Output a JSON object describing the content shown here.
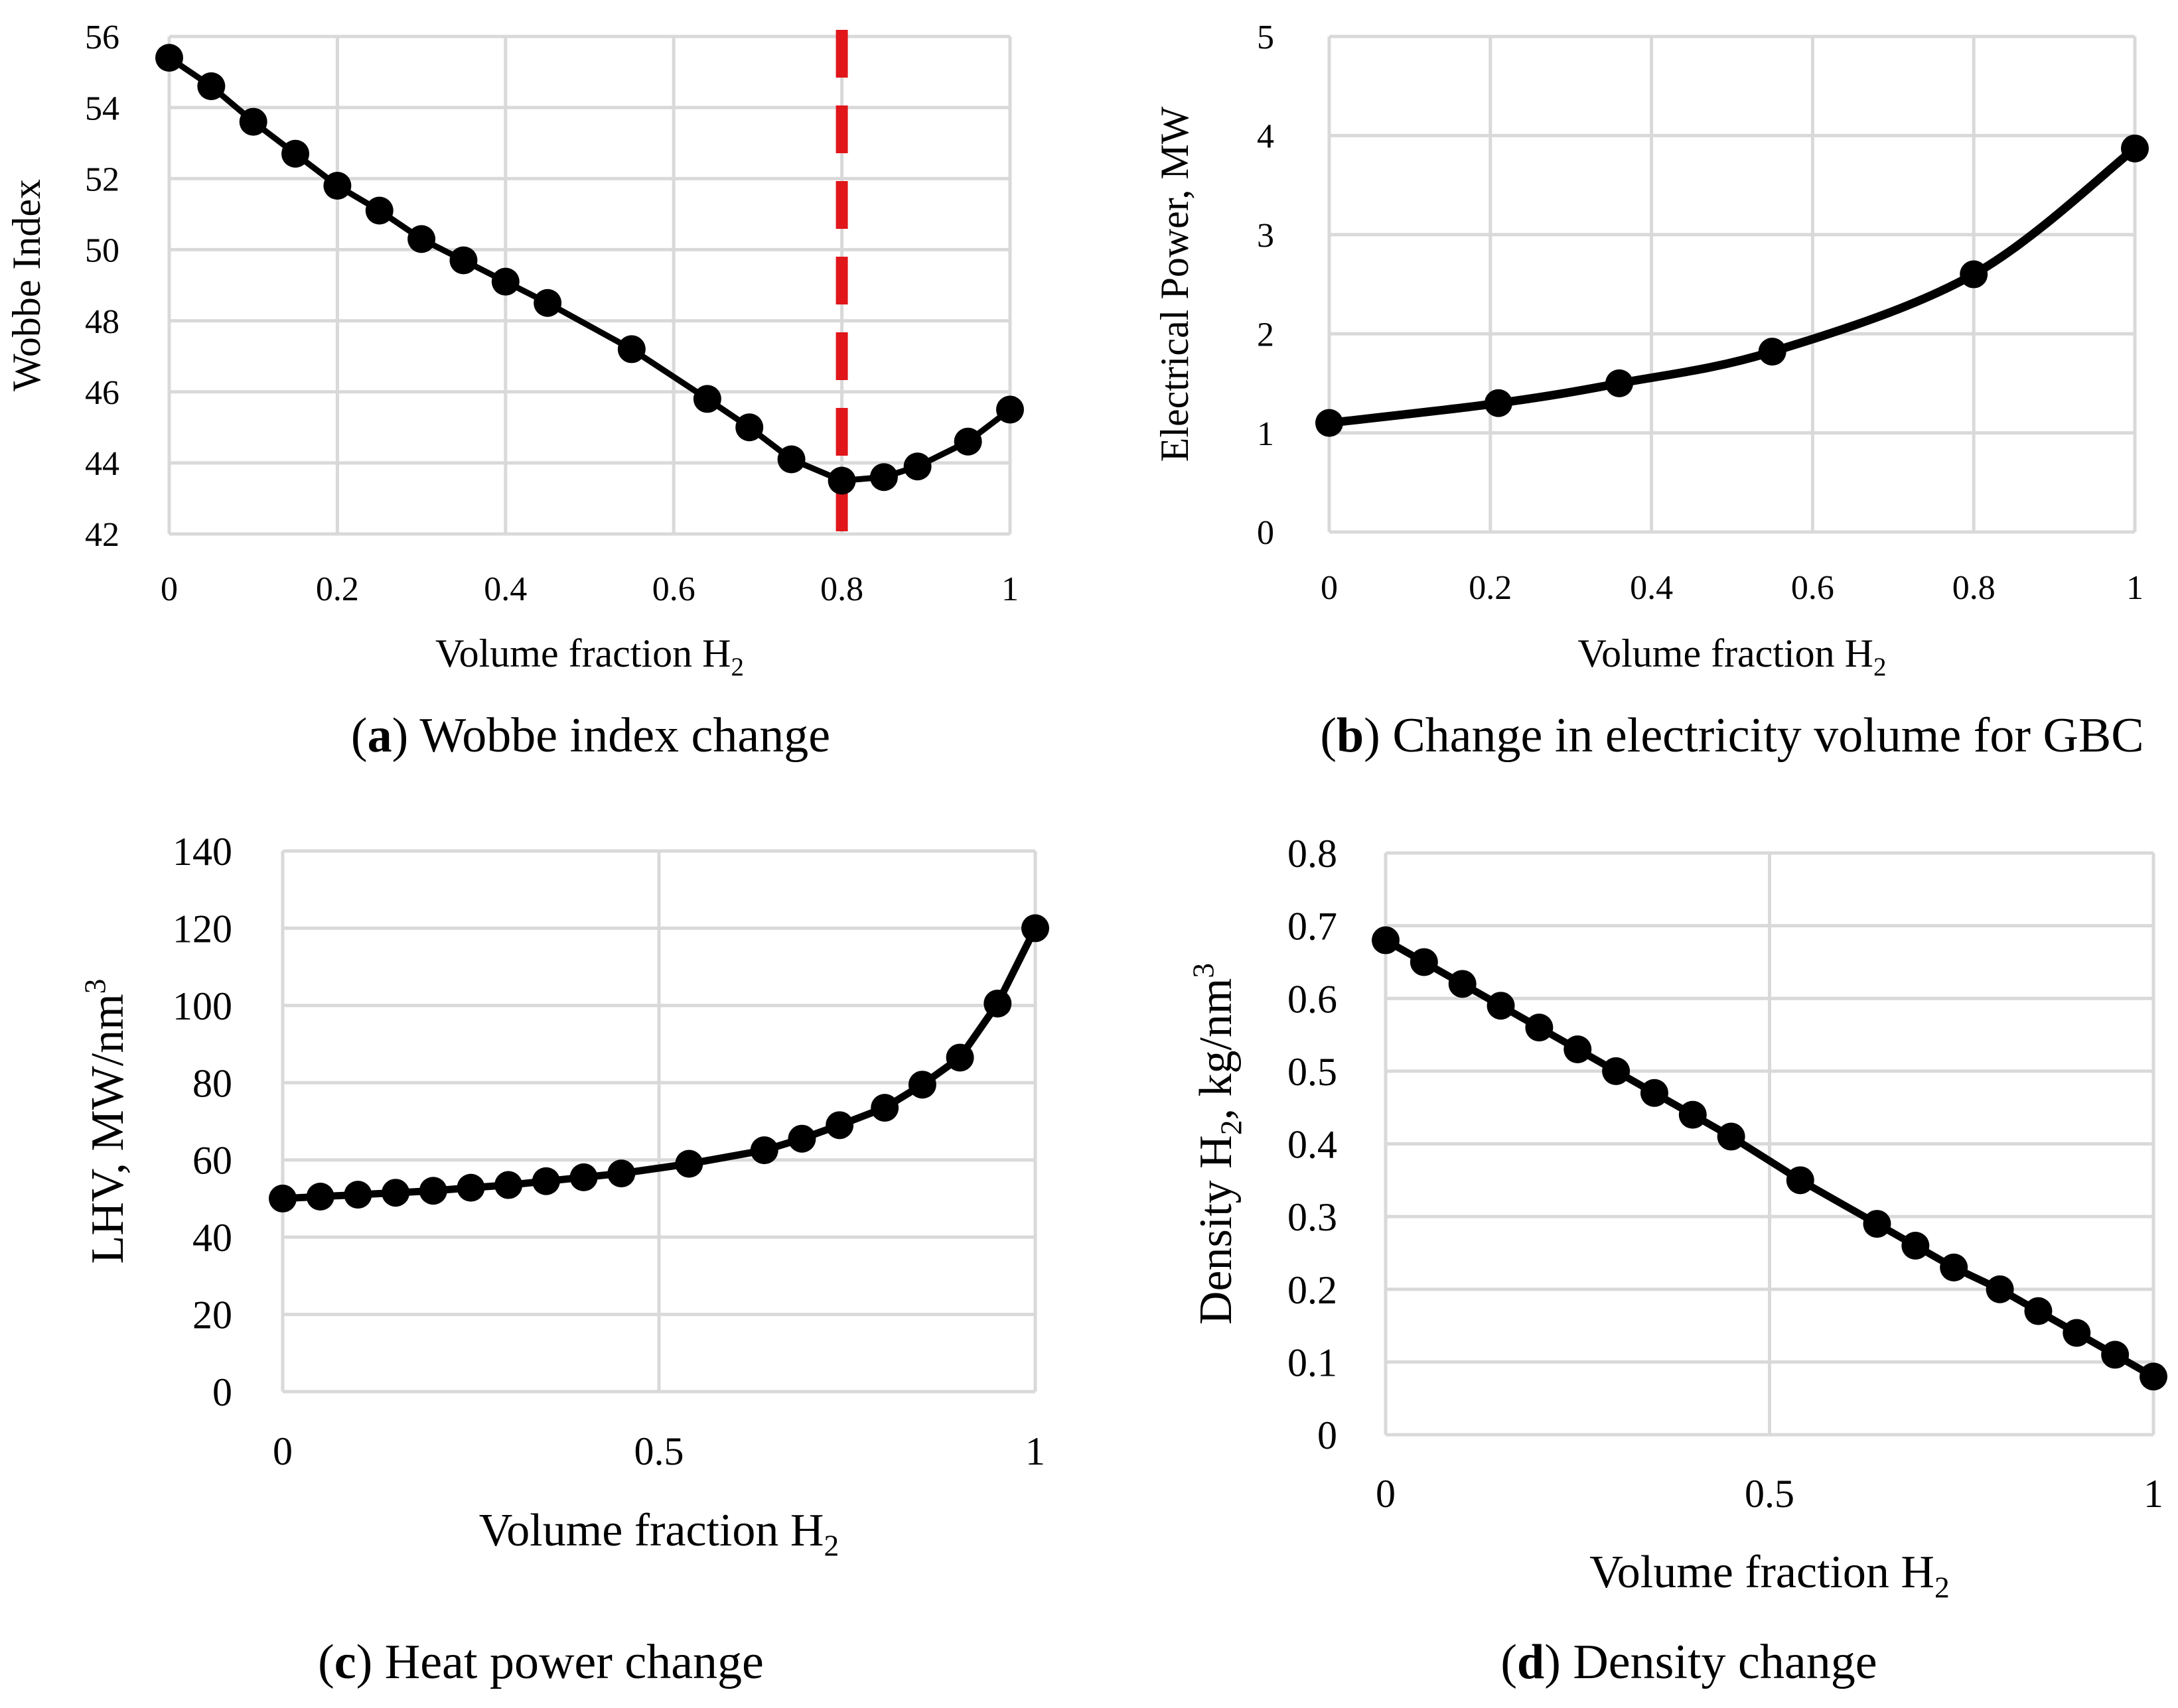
{
  "chart_data": [
    {
      "type": "line",
      "panel": "a",
      "caption_letter": "a",
      "caption_text": " Wobbe index change",
      "xlabel": "Volume fraction H",
      "xlabel_sub": "2",
      "ylabel": "Wobbe Index",
      "xlim": [
        0,
        1
      ],
      "ylim": [
        42,
        56
      ],
      "xticks": [
        0,
        0.2,
        0.4,
        0.6,
        0.8,
        1
      ],
      "xtick_labels": [
        "0",
        "0.2",
        "0.4",
        "0.6",
        "0.8",
        "1"
      ],
      "yticks": [
        42,
        44,
        46,
        48,
        50,
        52,
        54,
        56
      ],
      "ytick_labels": [
        "42",
        "44",
        "46",
        "48",
        "50",
        "52",
        "54",
        "56"
      ],
      "grid": true,
      "smooth": false,
      "reference_line": {
        "x": 0.8,
        "color": "#e0161b",
        "style": "dashed"
      },
      "series": [
        {
          "name": "Wobbe index",
          "x": [
            0,
            0.05,
            0.1,
            0.15,
            0.2,
            0.25,
            0.3,
            0.35,
            0.4,
            0.45,
            0.55,
            0.64,
            0.69,
            0.74,
            0.8,
            0.85,
            0.89,
            0.95,
            1.0
          ],
          "y": [
            55.4,
            54.6,
            53.6,
            52.7,
            51.8,
            51.1,
            50.3,
            49.7,
            49.1,
            48.5,
            47.2,
            45.8,
            45.0,
            44.1,
            43.5,
            43.6,
            43.9,
            44.6,
            45.5
          ]
        }
      ]
    },
    {
      "type": "line",
      "panel": "b",
      "caption_letter": "b",
      "caption_text": " Change in electricity volume for GBC",
      "xlabel": "Volume fraction H",
      "xlabel_sub": "2",
      "ylabel": "Electrical Power, MW",
      "xlim": [
        0,
        1
      ],
      "ylim": [
        0,
        5
      ],
      "xticks": [
        0,
        0.2,
        0.4,
        0.6,
        0.8,
        1
      ],
      "xtick_labels": [
        "0",
        "0.2",
        "0.4",
        "0.6",
        "0.8",
        "1"
      ],
      "yticks": [
        0,
        1,
        2,
        3,
        4,
        5
      ],
      "ytick_labels": [
        "0",
        "1",
        "2",
        "3",
        "4",
        "5"
      ],
      "grid": true,
      "smooth": true,
      "series": [
        {
          "name": "Electrical power",
          "x": [
            0,
            0.21,
            0.36,
            0.55,
            0.8,
            1.0
          ],
          "y": [
            1.1,
            1.3,
            1.5,
            1.82,
            2.6,
            3.87
          ]
        }
      ]
    },
    {
      "type": "line",
      "panel": "c",
      "caption_letter": "c",
      "caption_text": " Heat power change",
      "xlabel": "Volume fraction H",
      "xlabel_sub": "2",
      "ylabel": "LHV, MW/nm",
      "ylabel_sup": "3",
      "xlim": [
        0,
        1
      ],
      "ylim": [
        0,
        140
      ],
      "xticks": [
        0,
        0.5,
        1
      ],
      "xtick_labels": [
        "0",
        "0.5",
        "1"
      ],
      "yticks": [
        0,
        20,
        40,
        60,
        80,
        100,
        120,
        140
      ],
      "ytick_labels": [
        "0",
        "20",
        "40",
        "60",
        "80",
        "100",
        "120",
        "140"
      ],
      "grid": true,
      "smooth": false,
      "series": [
        {
          "name": "LHV",
          "x": [
            0,
            0.05,
            0.1,
            0.15,
            0.2,
            0.25,
            0.3,
            0.35,
            0.4,
            0.45,
            0.54,
            0.64,
            0.69,
            0.74,
            0.8,
            0.85,
            0.9,
            0.95,
            1.0
          ],
          "y": [
            50,
            50.5,
            51,
            51.5,
            52,
            52.8,
            53.5,
            54.5,
            55.5,
            56.5,
            59,
            62.5,
            65.5,
            69,
            73.5,
            79.5,
            86.5,
            100.5,
            120
          ]
        }
      ]
    },
    {
      "type": "line",
      "panel": "d",
      "caption_letter": "d",
      "caption_text": " Density change",
      "xlabel": "Volume fraction H",
      "xlabel_sub": "2",
      "ylabel_pre": "Density H",
      "ylabel_sub": "2",
      "ylabel_post": ", kg/nm",
      "ylabel_sup": "3",
      "xlim": [
        0,
        1
      ],
      "ylim": [
        0,
        0.8
      ],
      "xticks": [
        0,
        0.5,
        1
      ],
      "xtick_labels": [
        "0",
        "0.5",
        "1"
      ],
      "yticks": [
        0,
        0.1,
        0.2,
        0.3,
        0.4,
        0.5,
        0.6,
        0.7,
        0.8
      ],
      "ytick_labels": [
        "0",
        "0.1",
        "0.2",
        "0.3",
        "0.4",
        "0.5",
        "0.6",
        "0.7",
        "0.8"
      ],
      "grid": true,
      "smooth": false,
      "series": [
        {
          "name": "Density",
          "x": [
            0,
            0.05,
            0.1,
            0.15,
            0.2,
            0.25,
            0.3,
            0.35,
            0.4,
            0.45,
            0.54,
            0.64,
            0.69,
            0.74,
            0.8,
            0.85,
            0.9,
            0.95,
            1.0
          ],
          "y": [
            0.68,
            0.65,
            0.62,
            0.59,
            0.56,
            0.53,
            0.5,
            0.47,
            0.44,
            0.41,
            0.35,
            0.29,
            0.26,
            0.23,
            0.2,
            0.17,
            0.14,
            0.11,
            0.08
          ]
        }
      ]
    }
  ]
}
